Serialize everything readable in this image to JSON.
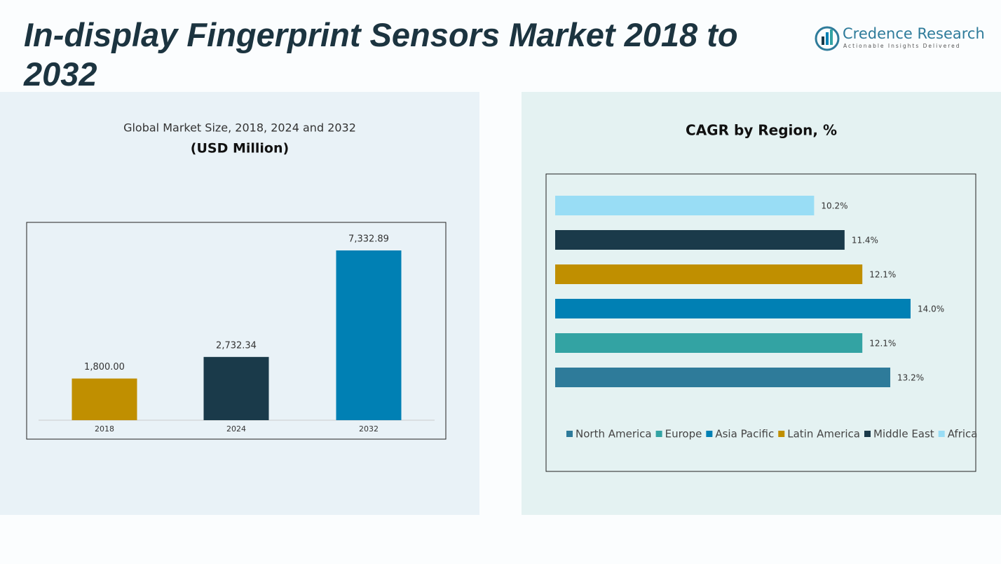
{
  "header": {
    "title": "In-display Fingerprint Sensors Market 2018 to 2032",
    "brand": "Credence Research",
    "tagline": "Actionable Insights Delivered"
  },
  "chart_data": [
    {
      "type": "bar",
      "title": "Global Market Size, 2018, 2024 and 2032",
      "subtitle": "(USD Million)",
      "categories": [
        "2018",
        "2024",
        "2032"
      ],
      "values": [
        1800,
        2732.34,
        7332.89
      ],
      "value_labels": [
        "1,800.00",
        "2,732.34",
        "7,332.89"
      ],
      "colors": [
        "#c08f00",
        "#1a3a4a",
        "#0080b4"
      ]
    },
    {
      "type": "hbar",
      "title": "CAGR by Region, %",
      "legend": "bottom",
      "series": [
        {
          "name": "North America",
          "color": "#2e7b9a",
          "values": [
            13.2
          ],
          "value_labels": [
            "13.2%"
          ]
        },
        {
          "name": "Europe",
          "color": "#33a3a3",
          "values": [
            12.1
          ],
          "value_labels": [
            "12.1%"
          ]
        },
        {
          "name": "Asia Pacific",
          "color": "#0080b4",
          "values": [
            14.0
          ],
          "value_labels": [
            "14.0%"
          ]
        },
        {
          "name": "Latin America",
          "color": "#c08f00",
          "values": [
            12.1
          ],
          "value_labels": [
            "12.1%"
          ]
        },
        {
          "name": "Middle East",
          "color": "#1a3a4a",
          "values": [
            11.4
          ],
          "value_labels": [
            "11.4%"
          ]
        },
        {
          "name": "Africa",
          "color": "#99ddf5",
          "values": [
            10.2
          ],
          "value_labels": [
            "10.2%"
          ]
        }
      ]
    }
  ]
}
